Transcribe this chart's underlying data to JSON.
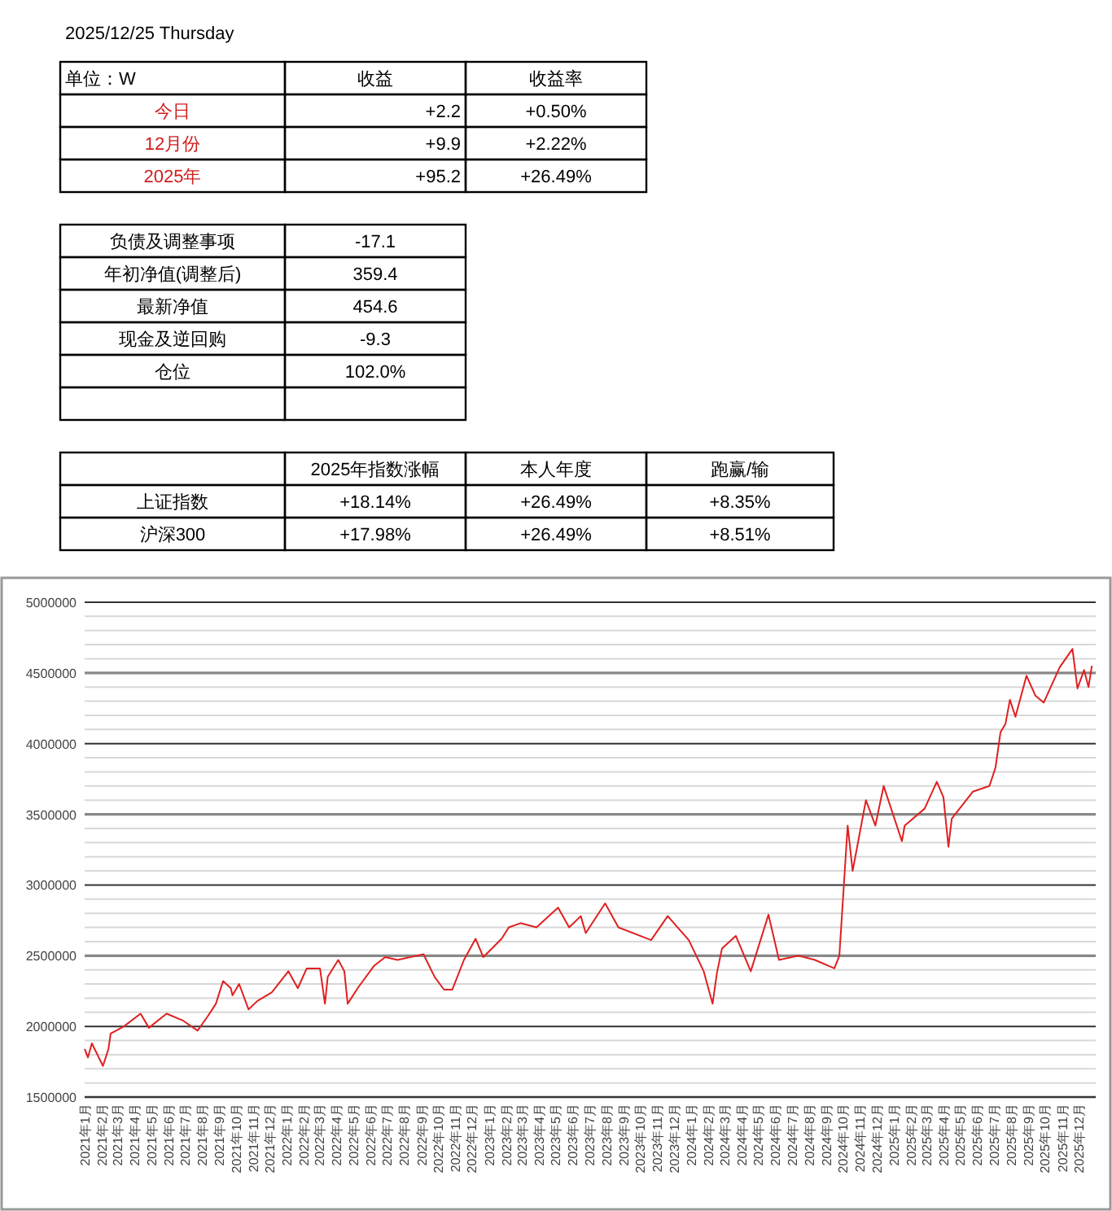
{
  "chart_data": [
    {
      "type": "other",
      "title": "2025/12/25  Thursday",
      "annotations": [
        "单位：W",
        "收益",
        "收益率",
        "今日",
        "+2.2",
        "+0.50%",
        "12月份",
        "+9.9",
        "+2.22%",
        "2025年",
        "+95.2",
        "+26.49%",
        "负债及调整事项",
        "-17.1",
        "年初净值(调整后)",
        "359.4",
        "最新净值",
        "454.6",
        "现金及逆回购",
        "-9.3",
        "仓位",
        "102.0%",
        "2025年指数涨幅",
        "本人年度",
        "跑赢/输",
        "上证指数",
        "+18.14%",
        "+26.49%",
        "+8.35%",
        "沪深300",
        "+17.98%",
        "+26.49%",
        "+8.51%"
      ]
    },
    {
      "type": "line",
      "color": "#e02020",
      "grid": "y",
      "ylim": [
        1500000,
        5000000
      ],
      "yticks": [
        1500000,
        {
          "value": 1600000,
          "label": null
        },
        {
          "value": 1700000,
          "label": null
        },
        {
          "value": 1800000,
          "label": null
        },
        {
          "value": 1900000,
          "label": null
        },
        2000000,
        {
          "value": 2100000,
          "label": null
        },
        {
          "value": 2200000,
          "label": null
        },
        {
          "value": 2300000,
          "label": null
        },
        {
          "value": 2400000,
          "label": null
        },
        2500000,
        {
          "value": 2600000,
          "label": null
        },
        {
          "value": 2700000,
          "label": null
        },
        {
          "value": 2800000,
          "label": null
        },
        {
          "value": 2900000,
          "label": null
        },
        3000000,
        {
          "value": 3100000,
          "label": null
        },
        {
          "value": 3200000,
          "label": null
        },
        {
          "value": 3300000,
          "label": null
        },
        {
          "value": 3400000,
          "label": null
        },
        3500000,
        {
          "value": 3600000,
          "label": null
        },
        {
          "value": 3700000,
          "label": null
        },
        {
          "value": 3800000,
          "label": null
        },
        {
          "value": 3900000,
          "label": null
        },
        4000000,
        {
          "value": 4100000,
          "label": null
        },
        {
          "value": 4200000,
          "label": null
        },
        {
          "value": 4300000,
          "label": null
        },
        {
          "value": 4400000,
          "label": null
        },
        4500000,
        {
          "value": 4600000,
          "label": null
        },
        {
          "value": 4700000,
          "label": null
        },
        {
          "value": 4800000,
          "label": null
        },
        {
          "value": 4900000,
          "label": null
        },
        5000000
      ],
      "xlim": [
        "2021-01-01",
        "2026-01-01"
      ],
      "xticks": [
        {
          "value": "2021-01-01",
          "label": "2021年1月"
        },
        {
          "value": "2021-02-01",
          "label": "2021年2月"
        },
        {
          "value": "2021-03-01",
          "label": "2021年3月"
        },
        {
          "value": "2021-04-01",
          "label": "2021年4月"
        },
        {
          "value": "2021-05-01",
          "label": "2021年5月"
        },
        {
          "value": "2021-06-01",
          "label": "2021年6月"
        },
        {
          "value": "2021-07-01",
          "label": "2021年7月"
        },
        {
          "value": "2021-08-01",
          "label": "2021年8月"
        },
        {
          "value": "2021-09-01",
          "label": "2021年9月"
        },
        {
          "value": "2021-10-01",
          "label": "2021年10月"
        },
        {
          "value": "2021-11-01",
          "label": "2021年11月"
        },
        {
          "value": "2021-12-01",
          "label": "2021年12月"
        },
        {
          "value": "2022-01-01",
          "label": "2022年1月"
        },
        {
          "value": "2022-02-01",
          "label": "2022年2月"
        },
        {
          "value": "2022-03-01",
          "label": "2022年3月"
        },
        {
          "value": "2022-04-01",
          "label": "2022年4月"
        },
        {
          "value": "2022-05-01",
          "label": "2022年5月"
        },
        {
          "value": "2022-06-01",
          "label": "2022年6月"
        },
        {
          "value": "2022-07-01",
          "label": "2022年7月"
        },
        {
          "value": "2022-08-01",
          "label": "2022年8月"
        },
        {
          "value": "2022-09-01",
          "label": "2022年9月"
        },
        {
          "value": "2022-10-01",
          "label": "2022年10月"
        },
        {
          "value": "2022-11-01",
          "label": "2022年11月"
        },
        {
          "value": "2022-12-01",
          "label": "2022年12月"
        },
        {
          "value": "2023-01-01",
          "label": "2023年1月"
        },
        {
          "value": "2023-02-01",
          "label": "2023年2月"
        },
        {
          "value": "2023-03-01",
          "label": "2023年3月"
        },
        {
          "value": "2023-04-01",
          "label": "2023年4月"
        },
        {
          "value": "2023-05-01",
          "label": "2023年5月"
        },
        {
          "value": "2023-06-01",
          "label": "2023年6月"
        },
        {
          "value": "2023-07-01",
          "label": "2023年7月"
        },
        {
          "value": "2023-08-01",
          "label": "2023年8月"
        },
        {
          "value": "2023-09-01",
          "label": "2023年9月"
        },
        {
          "value": "2023-10-01",
          "label": "2023年10月"
        },
        {
          "value": "2023-11-01",
          "label": "2023年11月"
        },
        {
          "value": "2023-12-01",
          "label": "2023年12月"
        },
        {
          "value": "2024-01-01",
          "label": "2024年1月"
        },
        {
          "value": "2024-02-01",
          "label": "2024年2月"
        },
        {
          "value": "2024-03-01",
          "label": "2024年3月"
        },
        {
          "value": "2024-04-01",
          "label": "2024年4月"
        },
        {
          "value": "2024-05-01",
          "label": "2024年5月"
        },
        {
          "value": "2024-06-01",
          "label": "2024年6月"
        },
        {
          "value": "2024-07-01",
          "label": "2024年7月"
        },
        {
          "value": "2024-08-01",
          "label": "2024年8月"
        },
        {
          "value": "2024-09-01",
          "label": "2024年9月"
        },
        {
          "value": "2024-10-01",
          "label": "2024年10月"
        },
        {
          "value": "2024-11-01",
          "label": "2024年11月"
        },
        {
          "value": "2024-12-01",
          "label": "2024年12月"
        },
        {
          "value": "2025-01-01",
          "label": "2025年1月"
        },
        {
          "value": "2025-02-01",
          "label": "2025年2月"
        },
        {
          "value": "2025-03-01",
          "label": "2025年3月"
        },
        {
          "value": "2025-04-01",
          "label": "2025年4月"
        },
        {
          "value": "2025-05-01",
          "label": "2025年5月"
        },
        {
          "value": "2025-06-01",
          "label": "2025年6月"
        },
        {
          "value": "2025-07-01",
          "label": "2025年7月"
        },
        {
          "value": "2025-08-01",
          "label": "2025年8月"
        },
        {
          "value": "2025-09-01",
          "label": "2025年9月"
        },
        {
          "value": "2025-10-01",
          "label": "2025年10月"
        },
        {
          "value": "2025-11-01",
          "label": "2025年11月"
        },
        {
          "value": "2025-12-01",
          "label": "2025年12月"
        }
      ],
      "x": [
        "2021-01-01",
        "2021-01-07",
        "2021-01-14",
        "2021-02-03",
        "2021-02-13",
        "2021-02-17",
        "2021-02-27",
        "2021-03-13",
        "2021-04-12",
        "2021-04-27",
        "2021-05-29",
        "2021-06-28",
        "2021-07-24",
        "2021-08-11",
        "2021-08-26",
        "2021-09-08",
        "2021-09-22",
        "2021-09-25",
        "2021-10-07",
        "2021-10-24",
        "2021-11-09",
        "2021-12-05",
        "2022-01-04",
        "2022-01-21",
        "2022-02-06",
        "2022-03-02",
        "2022-03-11",
        "2022-03-16",
        "2022-04-04",
        "2022-04-15",
        "2022-04-21",
        "2022-05-09",
        "2022-06-08",
        "2022-06-28",
        "2022-07-20",
        "2022-09-05",
        "2022-09-25",
        "2022-10-12",
        "2022-10-27",
        "2022-11-17",
        "2022-12-08",
        "2022-12-22",
        "2023-01-24",
        "2023-02-06",
        "2023-02-27",
        "2023-03-28",
        "2023-05-06",
        "2023-05-26",
        "2023-06-16",
        "2023-06-25",
        "2023-07-30",
        "2023-08-23",
        "2023-10-21",
        "2023-11-20",
        "2023-12-28",
        "2024-01-24",
        "2024-02-09",
        "2024-02-17",
        "2024-02-26",
        "2024-03-22",
        "2024-04-18",
        "2024-05-20",
        "2024-06-08",
        "2024-07-13",
        "2024-08-12",
        "2024-09-16",
        "2024-09-25",
        "2024-10-10",
        "2024-10-19",
        "2024-11-12",
        "2024-11-29",
        "2024-12-14",
        "2025-01-16",
        "2025-01-21",
        "2025-02-26",
        "2025-03-20",
        "2025-04-01",
        "2025-04-10",
        "2025-04-16",
        "2025-05-24",
        "2025-06-23",
        "2025-07-04",
        "2025-07-13",
        "2025-07-22",
        "2025-07-30",
        "2025-08-09",
        "2025-08-29",
        "2025-09-14",
        "2025-09-29",
        "2025-10-28",
        "2025-11-20",
        "2025-11-29",
        "2025-12-11",
        "2025-12-19",
        "2025-12-25"
      ],
      "values": [
        1840000,
        1780000,
        1880000,
        1720000,
        1840000,
        1950000,
        1970000,
        2000000,
        2090000,
        1990000,
        2090000,
        2040000,
        1970000,
        2070000,
        2160000,
        2320000,
        2270000,
        2220000,
        2300000,
        2120000,
        2180000,
        2240000,
        2390000,
        2270000,
        2410000,
        2410000,
        2160000,
        2350000,
        2470000,
        2390000,
        2160000,
        2270000,
        2430000,
        2490000,
        2470000,
        2510000,
        2350000,
        2260000,
        2260000,
        2470000,
        2620000,
        2490000,
        2620000,
        2700000,
        2730000,
        2700000,
        2840000,
        2700000,
        2780000,
        2660000,
        2870000,
        2700000,
        2610000,
        2780000,
        2610000,
        2390000,
        2160000,
        2380000,
        2550000,
        2640000,
        2390000,
        2790000,
        2470000,
        2500000,
        2470000,
        2410000,
        2500000,
        3420000,
        3100000,
        3600000,
        3420000,
        3700000,
        3310000,
        3420000,
        3540000,
        3730000,
        3620000,
        3270000,
        3470000,
        3660000,
        3700000,
        3830000,
        4080000,
        4140000,
        4310000,
        4190000,
        4480000,
        4340000,
        4290000,
        4540000,
        4670000,
        4390000,
        4520000,
        4400000,
        4550000
      ]
    }
  ]
}
